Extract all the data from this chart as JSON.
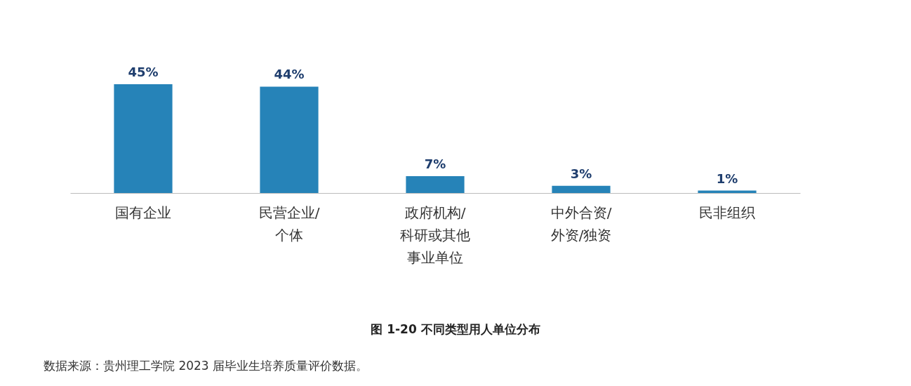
{
  "chart_data": {
    "type": "bar",
    "title": "图 1-20 不同类型用人单位分布",
    "categories": [
      "国有企业",
      "民营企业/个体",
      "政府机构/科研或其他事业单位",
      "中外合资/外资/独资",
      "民非组织"
    ],
    "values": [
      45,
      44,
      7,
      3,
      1
    ],
    "value_labels": [
      "45%",
      "44%",
      "7%",
      "3%",
      "1%"
    ],
    "color": "#2683b8",
    "annotations": [
      "数据来源：贵州理工学院 2023 届毕业生培养质量评价数据。"
    ]
  }
}
